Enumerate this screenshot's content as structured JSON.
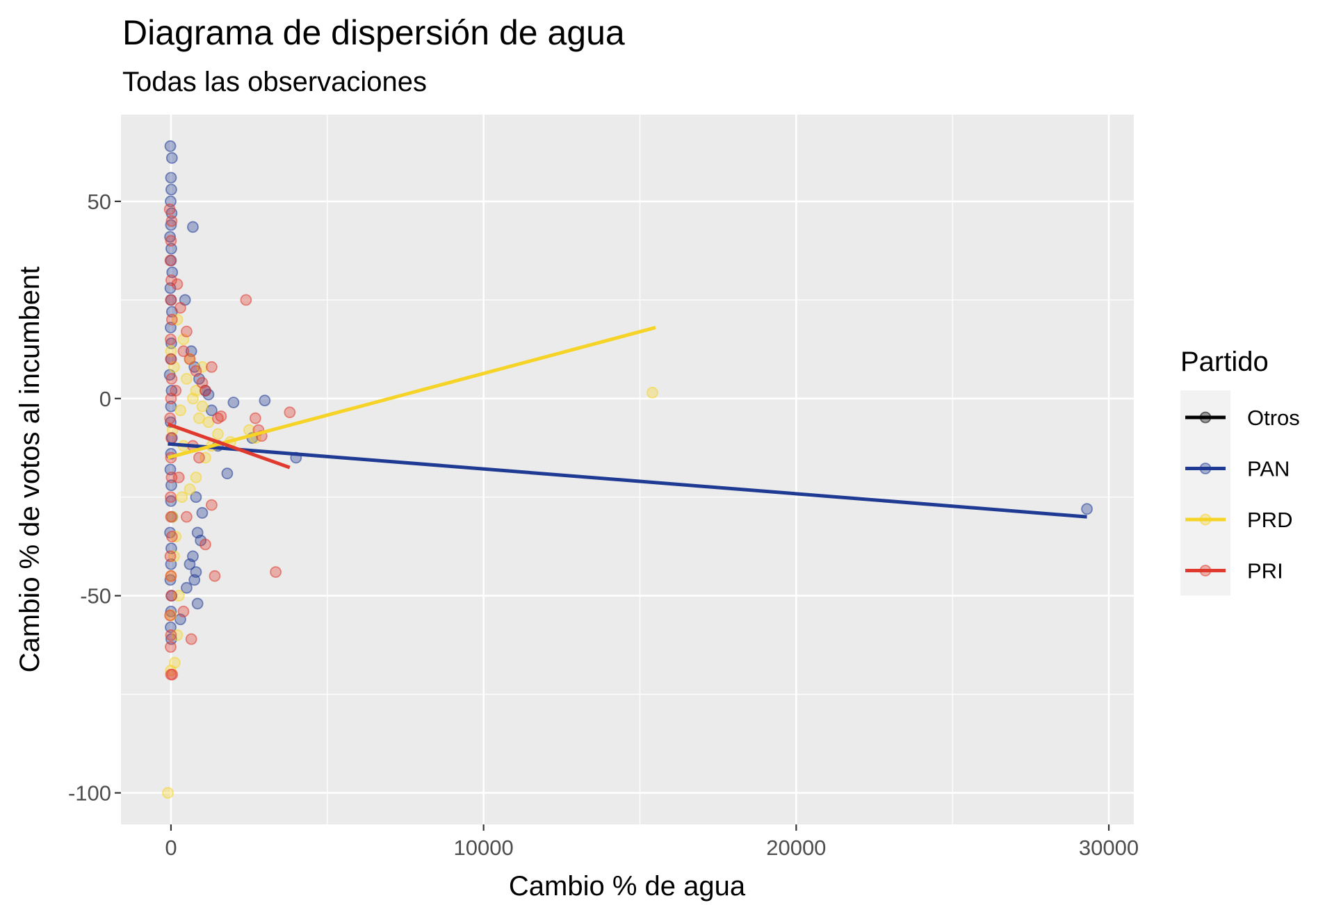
{
  "chart_data": {
    "type": "scatter",
    "title": "Diagrama de dispersión de agua",
    "subtitle": "Todas las observaciones",
    "xlabel": "Cambio % de agua",
    "ylabel": "Cambio % de votos al incumbent",
    "xlim": [
      -1600,
      30800
    ],
    "ylim": [
      -108,
      72
    ],
    "x_ticks": [
      0,
      10000,
      20000,
      30000
    ],
    "x_tick_labels": [
      "0",
      "10000",
      "20000",
      "30000"
    ],
    "y_ticks": [
      50,
      0,
      -50,
      -100
    ],
    "y_tick_labels": [
      "50",
      "0",
      "-50",
      "-100"
    ],
    "x_minor": [
      5000,
      15000,
      25000
    ],
    "y_minor": [
      25,
      -25,
      -75
    ],
    "grid": true,
    "panel_color": "#ebebeb",
    "legend": {
      "title": "Partido",
      "position": "right",
      "entries": [
        {
          "label": "Otros",
          "color": "#000000"
        },
        {
          "label": "PAN",
          "color": "#1f3a93"
        },
        {
          "label": "PRD",
          "color": "#f5d327"
        },
        {
          "label": "PRI",
          "color": "#e03a2e"
        }
      ]
    },
    "series": [
      {
        "name": "PAN",
        "color": "#1f3a93",
        "points": [
          [
            -20,
            64
          ],
          [
            30,
            61
          ],
          [
            0,
            56
          ],
          [
            10,
            53
          ],
          [
            -10,
            50
          ],
          [
            20,
            47
          ],
          [
            0,
            44
          ],
          [
            -30,
            41
          ],
          [
            10,
            38
          ],
          [
            0,
            35
          ],
          [
            40,
            32
          ],
          [
            -20,
            28
          ],
          [
            0,
            25
          ],
          [
            30,
            22
          ],
          [
            -10,
            18
          ],
          [
            10,
            14
          ],
          [
            0,
            10
          ],
          [
            -40,
            6
          ],
          [
            20,
            2
          ],
          [
            0,
            -2
          ],
          [
            -10,
            -6
          ],
          [
            30,
            -10
          ],
          [
            0,
            -14
          ],
          [
            -20,
            -18
          ],
          [
            10,
            -22
          ],
          [
            0,
            -26
          ],
          [
            40,
            -30
          ],
          [
            -30,
            -34
          ],
          [
            10,
            -38
          ],
          [
            0,
            -42
          ],
          [
            -20,
            -46
          ],
          [
            20,
            -50
          ],
          [
            0,
            -54
          ],
          [
            -10,
            -58
          ],
          [
            10,
            -61
          ],
          [
            700,
            43.5
          ],
          [
            450,
            25
          ],
          [
            650,
            12
          ],
          [
            750,
            8
          ],
          [
            900,
            5
          ],
          [
            1100,
            2
          ],
          [
            1200,
            1
          ],
          [
            2000,
            -1
          ],
          [
            3000,
            -0.5
          ],
          [
            1300,
            -3
          ],
          [
            2600,
            -10
          ],
          [
            1500,
            -12
          ],
          [
            1800,
            -19
          ],
          [
            4000,
            -15
          ],
          [
            800,
            -25
          ],
          [
            1000,
            -29
          ],
          [
            850,
            -34
          ],
          [
            950,
            -36
          ],
          [
            700,
            -40
          ],
          [
            800,
            -44
          ],
          [
            600,
            -42
          ],
          [
            750,
            -46
          ],
          [
            850,
            -52
          ],
          [
            500,
            -48
          ],
          [
            300,
            -56
          ],
          [
            29300,
            -28
          ]
        ]
      },
      {
        "name": "PRD",
        "color": "#f5d327",
        "points": [
          [
            -100,
            -100
          ],
          [
            15400,
            1.5
          ],
          [
            120,
            -67
          ],
          [
            -10,
            -69
          ],
          [
            200,
            -60
          ],
          [
            0,
            -45
          ],
          [
            100,
            -40
          ],
          [
            50,
            -30
          ],
          [
            350,
            -25
          ],
          [
            600,
            -23
          ],
          [
            800,
            -20
          ],
          [
            1100,
            -15
          ],
          [
            1300,
            -12
          ],
          [
            1500,
            -9
          ],
          [
            2500,
            -8
          ],
          [
            2700,
            -10
          ],
          [
            900,
            -5
          ],
          [
            1200,
            -6
          ],
          [
            700,
            0
          ],
          [
            500,
            5
          ],
          [
            600,
            10
          ],
          [
            400,
            15
          ],
          [
            200,
            20
          ],
          [
            0,
            12
          ],
          [
            100,
            8
          ],
          [
            300,
            -3
          ],
          [
            50,
            -8
          ],
          [
            800,
            2
          ],
          [
            1000,
            -2
          ],
          [
            150,
            -35
          ],
          [
            250,
            -50
          ],
          [
            0,
            -55
          ],
          [
            1900,
            -11
          ],
          [
            1000,
            8
          ],
          [
            400,
            -12
          ]
        ]
      },
      {
        "name": "PRI",
        "color": "#e03a2e",
        "points": [
          [
            -40,
            48
          ],
          [
            20,
            45
          ],
          [
            0,
            40
          ],
          [
            -20,
            35
          ],
          [
            10,
            30
          ],
          [
            0,
            25
          ],
          [
            30,
            20
          ],
          [
            -10,
            15
          ],
          [
            0,
            10
          ],
          [
            20,
            5
          ],
          [
            0,
            0
          ],
          [
            -30,
            -5
          ],
          [
            10,
            -10
          ],
          [
            0,
            -15
          ],
          [
            20,
            -20
          ],
          [
            -10,
            -25
          ],
          [
            0,
            -30
          ],
          [
            30,
            -35
          ],
          [
            -20,
            -40
          ],
          [
            0,
            -45
          ],
          [
            10,
            -50
          ],
          [
            -30,
            -55
          ],
          [
            0,
            -60
          ],
          [
            -10,
            -63
          ],
          [
            0,
            -70
          ],
          [
            40,
            -70
          ],
          [
            200,
            29
          ],
          [
            300,
            23
          ],
          [
            500,
            17
          ],
          [
            400,
            12
          ],
          [
            600,
            10
          ],
          [
            800,
            7
          ],
          [
            1000,
            4
          ],
          [
            1100,
            2
          ],
          [
            2400,
            25
          ],
          [
            3800,
            -3.5
          ],
          [
            2700,
            -5
          ],
          [
            1600,
            -4.5
          ],
          [
            1500,
            -5
          ],
          [
            2800,
            -8
          ],
          [
            2900,
            -9.5
          ],
          [
            1300,
            8
          ],
          [
            1300,
            -27
          ],
          [
            1100,
            -37
          ],
          [
            1400,
            -45
          ],
          [
            3350,
            -44
          ],
          [
            400,
            -54
          ],
          [
            650,
            -61
          ],
          [
            900,
            -15
          ],
          [
            700,
            -12
          ],
          [
            250,
            -20
          ],
          [
            500,
            -30
          ],
          [
            150,
            2
          ]
        ]
      }
    ],
    "fit_lines": [
      {
        "name": "PAN",
        "color": "#1f3a93",
        "x": [
          -100,
          29300
        ],
        "y": [
          -11.5,
          -30
        ]
      },
      {
        "name": "PRD",
        "color": "#f5d327",
        "x": [
          -100,
          15500
        ],
        "y": [
          -15,
          18
        ]
      },
      {
        "name": "PRI",
        "color": "#e03a2e",
        "x": [
          -100,
          3800
        ],
        "y": [
          -6.5,
          -17.5
        ]
      }
    ]
  }
}
